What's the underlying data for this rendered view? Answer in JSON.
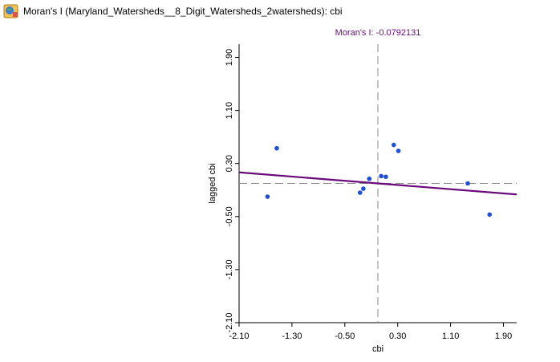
{
  "window": {
    "title": "Moran's I (Maryland_Watersheds__8_Digit_Watersheds_2watersheds): cbi",
    "icon": "map-globe-icon"
  },
  "chart_data": {
    "type": "scatter",
    "title": "Moran's I: -0.0792131",
    "xlabel": "cbi",
    "ylabel": "lagged cbi",
    "xlim": [
      -2.1,
      2.1
    ],
    "ylim": [
      -2.1,
      2.1
    ],
    "x_ticks": [
      "-2.10",
      "-1.30",
      "-0.50",
      "0.30",
      "1.10",
      "1.90"
    ],
    "y_ticks": [
      "-2.10",
      "-1.30",
      "-0.50",
      "0.30",
      "1.10",
      "1.90"
    ],
    "points": [
      {
        "x": -1.53,
        "y": 0.53
      },
      {
        "x": -1.67,
        "y": -0.2
      },
      {
        "x": -0.27,
        "y": -0.14
      },
      {
        "x": -0.22,
        "y": -0.08
      },
      {
        "x": -0.13,
        "y": 0.07
      },
      {
        "x": 0.05,
        "y": 0.11
      },
      {
        "x": 0.12,
        "y": 0.1
      },
      {
        "x": 0.24,
        "y": 0.58
      },
      {
        "x": 0.31,
        "y": 0.49
      },
      {
        "x": 1.36,
        "y": 0.0
      },
      {
        "x": 1.69,
        "y": -0.47
      }
    ],
    "regression": {
      "slope": -0.0792131,
      "intercept": 0.0
    },
    "mean_x": 0.0,
    "mean_y": 0.0,
    "colors": {
      "points": "#1f4fd6",
      "regression": "#6a0a7a",
      "title": "#6a0a7a",
      "reference_lines": "#8a8a8a",
      "axes": "#000000"
    }
  }
}
